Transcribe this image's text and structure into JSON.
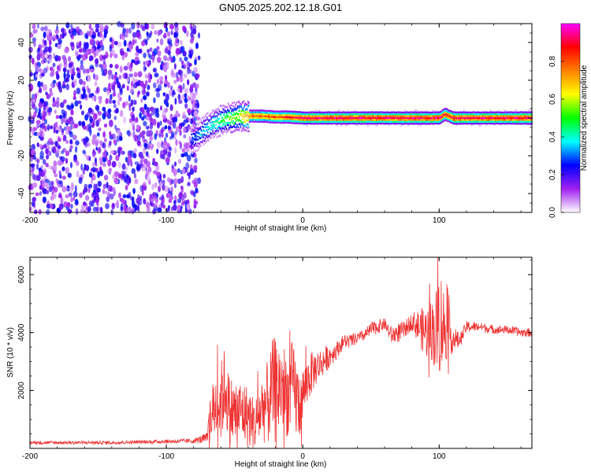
{
  "title": "GN05.2025.202.12.18.G01",
  "chart_data": [
    {
      "type": "heatmap",
      "xlabel": "Height of straight line (km)",
      "ylabel": "Frequency (Hz)",
      "xlim": [
        -200,
        168
      ],
      "ylim": [
        -50,
        50
      ],
      "x_ticks": [
        -200,
        -100,
        0,
        100
      ],
      "y_ticks": [
        -40,
        -20,
        0,
        20,
        40
      ],
      "x_tick_labels": [
        "-200",
        "-100",
        "0",
        "100"
      ],
      "y_tick_labels": [
        "-40",
        "-20",
        "0",
        "20",
        "40"
      ],
      "colorbar": {
        "label": "Normalized spectral amplitude",
        "range": [
          0,
          1
        ],
        "ticks": [
          0.0,
          0.2,
          0.4,
          0.6,
          0.8
        ],
        "tick_labels": [
          "0.0",
          "0.2",
          "0.4",
          "0.6",
          "0.8"
        ],
        "colors": [
          "#ffffff",
          "#a020f0",
          "#0000ff",
          "#00ffff",
          "#00ff00",
          "#ffff00",
          "#ff8000",
          "#ff0000",
          "#ff00ff"
        ]
      },
      "noise_region_x": [
        -200,
        -80
      ],
      "signal_track": {
        "x": [
          -82,
          -75,
          -70,
          -65,
          -60,
          -55,
          -50,
          -45,
          -40,
          -30,
          -20,
          -10,
          0,
          50,
          100,
          104,
          110,
          168
        ],
        "freq": [
          -12,
          -8,
          -5,
          -3,
          -1,
          0,
          0.5,
          1,
          1,
          1,
          0.5,
          0.5,
          0,
          0,
          0,
          2,
          0,
          0
        ],
        "amplitude": [
          0.3,
          0.35,
          0.4,
          0.45,
          0.5,
          0.55,
          0.6,
          0.7,
          0.8,
          0.85,
          0.85,
          0.9,
          0.95,
          0.95,
          0.95,
          0.9,
          0.95,
          0.95
        ]
      }
    },
    {
      "type": "line",
      "xlabel": "Height of straight line (km)",
      "ylabel": "SNR (10 * v/v)",
      "xlim": [
        -200,
        168
      ],
      "ylim": [
        0,
        6600
      ],
      "x_ticks": [
        -200,
        -100,
        0,
        100
      ],
      "y_ticks": [
        2000,
        4000,
        6000
      ],
      "x_tick_labels": [
        "-200",
        "-100",
        "0",
        "100"
      ],
      "y_tick_labels": [
        "2000",
        "4000",
        "6000"
      ],
      "color": "#ee3333",
      "series": [
        {
          "x": [
            -200,
            -180,
            -160,
            -140,
            -120,
            -100,
            -80,
            -70,
            -68,
            -64,
            -60,
            -57,
            -54,
            -50,
            -45,
            -40,
            -35,
            -30,
            -25,
            -22,
            -20,
            -15,
            -10,
            -8,
            -5,
            -3,
            0,
            5,
            10,
            15,
            20,
            25,
            30,
            35,
            40,
            45,
            50,
            55,
            60,
            65,
            70,
            75,
            80,
            85,
            90,
            95,
            98,
            100,
            102,
            105,
            110,
            115,
            120,
            130,
            140,
            150,
            160,
            168
          ],
          "y": [
            200,
            200,
            200,
            200,
            220,
            240,
            260,
            350,
            1000,
            1500,
            1600,
            2200,
            1400,
            1200,
            1300,
            1100,
            800,
            1400,
            1600,
            2100,
            2000,
            2200,
            1700,
            2400,
            1800,
            1500,
            1900,
            2500,
            2800,
            3000,
            3200,
            3400,
            3700,
            3700,
            3800,
            3900,
            4100,
            4200,
            4300,
            3900,
            4000,
            4100,
            4400,
            4200,
            4000,
            4100,
            4000,
            4500,
            4300,
            4100,
            3800,
            3700,
            4200,
            4200,
            4100,
            4100,
            4000,
            4000
          ],
          "spike_amplitude": [
            60,
            60,
            60,
            60,
            60,
            70,
            80,
            200,
            900,
            1200,
            1400,
            1400,
            1200,
            1200,
            1100,
            1100,
            900,
            1200,
            1500,
            1700,
            1900,
            1600,
            1400,
            1300,
            1500,
            1400,
            900,
            800,
            600,
            500,
            400,
            300,
            250,
            250,
            200,
            200,
            250,
            250,
            200,
            300,
            350,
            300,
            300,
            600,
            900,
            1100,
            1600,
            2000,
            1700,
            1100,
            500,
            250,
            200,
            150,
            150,
            150,
            150,
            150
          ]
        }
      ]
    }
  ]
}
